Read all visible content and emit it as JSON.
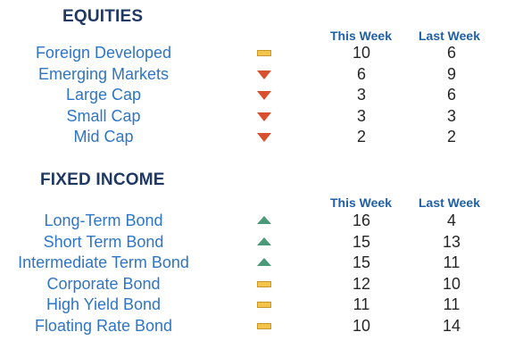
{
  "equities": {
    "title": "EQUITIES",
    "this_week_label": "This Week",
    "last_week_label": "Last Week",
    "rows": [
      {
        "name": "Foreign Developed",
        "trend": "flat",
        "this_week": "10",
        "last_week": "6"
      },
      {
        "name": "Emerging Markets",
        "trend": "down",
        "this_week": "6",
        "last_week": "9"
      },
      {
        "name": "Large Cap",
        "trend": "down",
        "this_week": "3",
        "last_week": "6"
      },
      {
        "name": "Small Cap",
        "trend": "down",
        "this_week": "3",
        "last_week": "3"
      },
      {
        "name": "Mid Cap",
        "trend": "down",
        "this_week": "2",
        "last_week": "2"
      }
    ]
  },
  "fixed_income": {
    "title": "FIXED INCOME",
    "this_week_label": "This Week",
    "last_week_label": "Last Week",
    "rows": [
      {
        "name": "Long-Term Bond",
        "trend": "up",
        "this_week": "16",
        "last_week": "4"
      },
      {
        "name": "Short Term Bond",
        "trend": "up",
        "this_week": "15",
        "last_week": "13"
      },
      {
        "name": "Intermediate Term Bond",
        "trend": "up",
        "this_week": "15",
        "last_week": "11"
      },
      {
        "name": "Corporate Bond",
        "trend": "flat",
        "this_week": "12",
        "last_week": "10"
      },
      {
        "name": "High Yield Bond",
        "trend": "flat",
        "this_week": "11",
        "last_week": "11"
      },
      {
        "name": "Floating Rate Bond",
        "trend": "flat",
        "this_week": "10",
        "last_week": "14"
      }
    ]
  },
  "colors": {
    "title": "#1f3864",
    "header": "#1f5fa6",
    "name": "#2e75c5",
    "down": "#d9502f",
    "up": "#4a9a78",
    "flat": "#f2c44b"
  },
  "icons": {
    "up": "triangle-up-icon",
    "down": "triangle-down-icon",
    "flat": "dash-icon"
  }
}
